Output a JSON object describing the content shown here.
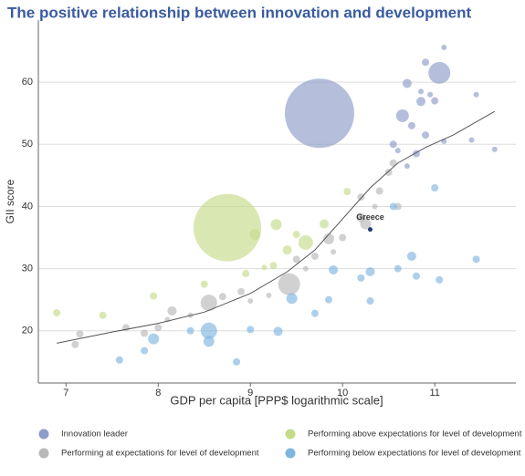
{
  "chart_data": {
    "type": "scatter",
    "title": "The positive relationship between innovation and development",
    "x_label": "GDP per capita [PPP$ logarithmic scale]",
    "y_label": "GII score",
    "xlim": [
      6.7,
      11.88
    ],
    "ylim": [
      11.6,
      70
    ],
    "xticks": [
      7,
      8,
      9,
      10,
      11
    ],
    "yticks": [
      20,
      30,
      40,
      50,
      60
    ],
    "grid": true,
    "series": [
      {
        "name": "Innovation leader",
        "color": "#8e9cc8",
        "x": [
          9.75,
          11.05,
          10.65,
          10.7,
          10.85,
          10.9,
          11.1,
          11.45,
          11.65,
          10.55,
          10.6,
          10.75,
          10.8,
          10.85,
          10.95,
          11.0,
          11.1,
          11.4,
          10.7,
          10.9
        ],
        "values": [
          55,
          61.5,
          54.6,
          59.8,
          56.9,
          63.2,
          65.6,
          58,
          49.2,
          50,
          49,
          53,
          48.5,
          58.5,
          58,
          57,
          50.5,
          50.7,
          46.5,
          51.5
        ],
        "sizes": [
          38,
          12,
          7,
          5,
          5,
          4,
          3,
          3,
          3,
          4,
          3,
          4,
          4,
          3,
          3,
          4,
          3,
          3,
          3,
          4
        ]
      },
      {
        "name": "Performing above expectations for level of development",
        "color": "#c5db8a",
        "x": [
          8.75,
          9.05,
          9.28,
          9.6,
          9.8,
          9.4,
          9.25,
          8.95,
          8.5,
          7.95,
          7.4,
          6.9,
          10.05,
          9.5,
          9.15
        ],
        "values": [
          36.6,
          35.5,
          37.1,
          34.2,
          37.2,
          33,
          30.5,
          29.2,
          27.5,
          25.6,
          22.5,
          22.9,
          42.4,
          35.5,
          30.2
        ],
        "sizes": [
          37,
          6,
          6,
          8,
          5,
          5,
          4,
          4,
          4,
          4,
          4,
          4,
          4,
          4,
          3
        ]
      },
      {
        "name": "Performing at expectations for level of development",
        "color": "#b8b8b8",
        "x": [
          8.55,
          9.42,
          8.15,
          7.15,
          7.1,
          7.65,
          7.85,
          8.0,
          8.1,
          8.35,
          8.7,
          8.9,
          9.0,
          9.2,
          9.5,
          9.6,
          9.85,
          10.0,
          10.2,
          10.25,
          10.4,
          10.5,
          10.55,
          10.6,
          10.2,
          9.7,
          9.9,
          10.35
        ],
        "values": [
          24.5,
          27.5,
          23.2,
          19.5,
          17.8,
          20.5,
          19.6,
          20.5,
          21.8,
          22.5,
          25.5,
          26.3,
          24.8,
          25.7,
          31.5,
          30,
          34.8,
          35,
          38.2,
          37.2,
          42.5,
          45.5,
          47,
          40,
          41.5,
          32,
          32.7,
          40
        ],
        "sizes": [
          9,
          12,
          5,
          4,
          4,
          4,
          4,
          4,
          3,
          3,
          4,
          4,
          3,
          3,
          4,
          3,
          6,
          4,
          5,
          6,
          4,
          4,
          4,
          4,
          4,
          4,
          3,
          3
        ]
      },
      {
        "name": "Performing below expectations for level of development",
        "color": "#7fb6e0",
        "x": [
          8.55,
          8.55,
          7.95,
          7.85,
          7.58,
          8.35,
          8.85,
          9.0,
          9.3,
          9.45,
          9.7,
          9.9,
          9.85,
          10.3,
          10.3,
          10.2,
          10.6,
          10.75,
          10.8,
          11.05,
          11.45,
          10.55,
          11.0
        ],
        "values": [
          20,
          18.3,
          18.7,
          16.8,
          15.3,
          20,
          15,
          20.2,
          19.9,
          25.2,
          22.8,
          29.8,
          25,
          29.5,
          24.8,
          28.5,
          30,
          32,
          28.8,
          28.2,
          31.5,
          40,
          43
        ],
        "sizes": [
          9,
          6,
          6,
          4,
          4,
          4,
          4,
          4,
          5,
          6,
          4,
          5,
          4,
          5,
          4,
          4,
          4,
          5,
          4,
          4,
          4,
          4,
          4
        ]
      }
    ],
    "trend": {
      "color": "#555555",
      "x": [
        6.9,
        7.5,
        8,
        8.5,
        9,
        9.4,
        9.7,
        10,
        10.3,
        10.6,
        10.9,
        11.2,
        11.65
      ],
      "values": [
        18,
        19.8,
        21.2,
        23,
        26,
        29.5,
        33,
        38,
        43,
        47,
        49.5,
        51.5,
        55.3
      ]
    },
    "annotations": [
      {
        "text": "Greece",
        "x": 10.3,
        "y": 36.3
      }
    ]
  }
}
